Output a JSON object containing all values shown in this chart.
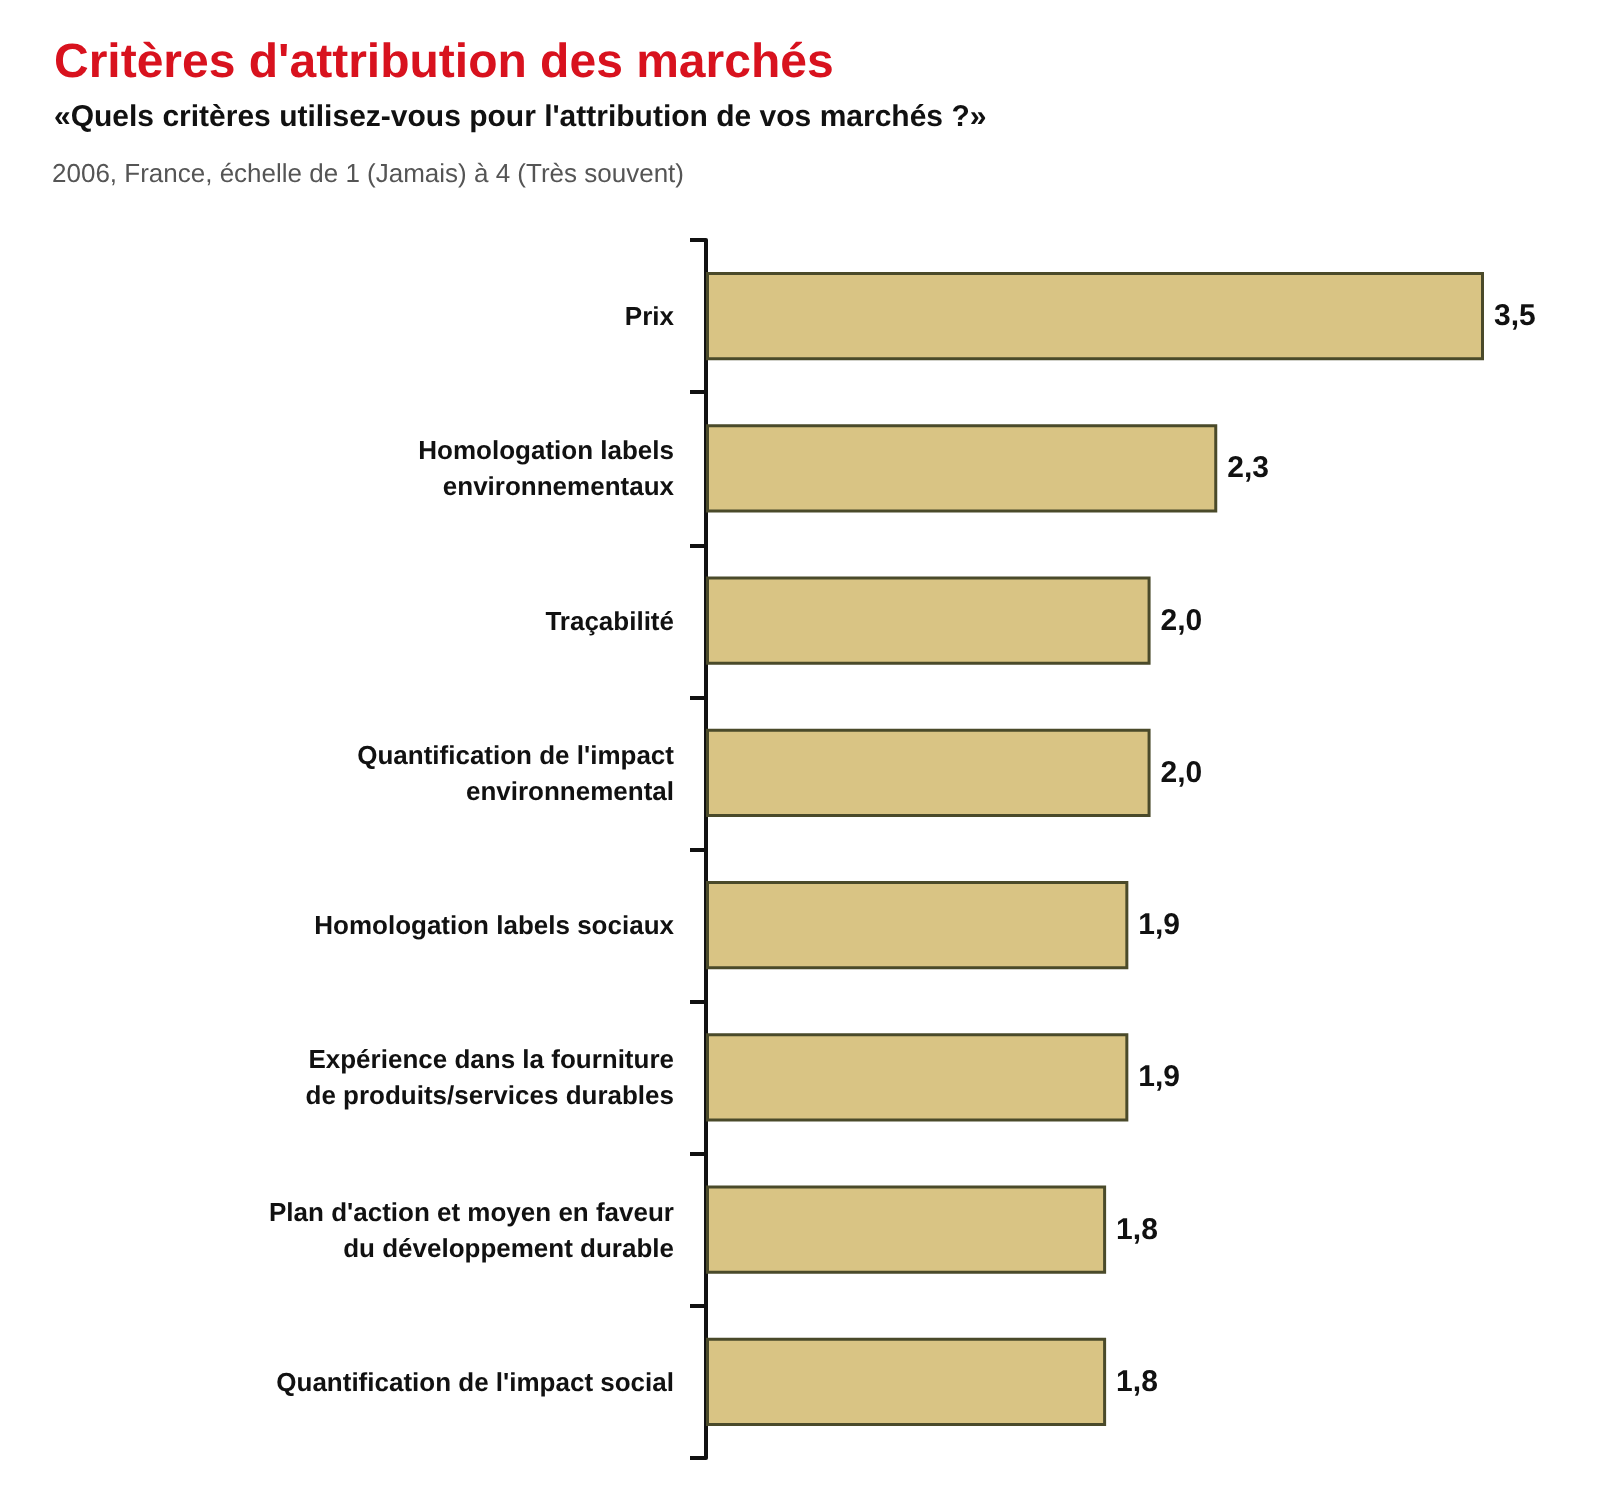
{
  "chart_data": {
    "type": "bar",
    "orientation": "horizontal",
    "title": "Critères d'attribution des marchés",
    "subtitle": "«Quels critères utilisez-vous pour l'attribution de vos marchés ?»",
    "annotations": [
      "2006, France, échelle de 1 (Jamais) à 4 (Très souvent)"
    ],
    "categories": [
      "Prix",
      "Homologation labels\nenvironnementaux",
      "Traçabilité",
      "Quantification de l'impact\nenvironnemental",
      "Homologation labels sociaux",
      "Expérience dans la fourniture\nde produits/services durables",
      "Plan d'action et moyen en faveur\ndu développement durable",
      "Quantification de l'impact social"
    ],
    "values": [
      3.5,
      2.3,
      2.0,
      2.0,
      1.9,
      1.9,
      1.8,
      1.8
    ],
    "value_labels": [
      "3,5",
      "2,3",
      "2,0",
      "2,0",
      "1,9",
      "1,9",
      "1,8",
      "1,8"
    ],
    "color": "#d9c484"
  }
}
